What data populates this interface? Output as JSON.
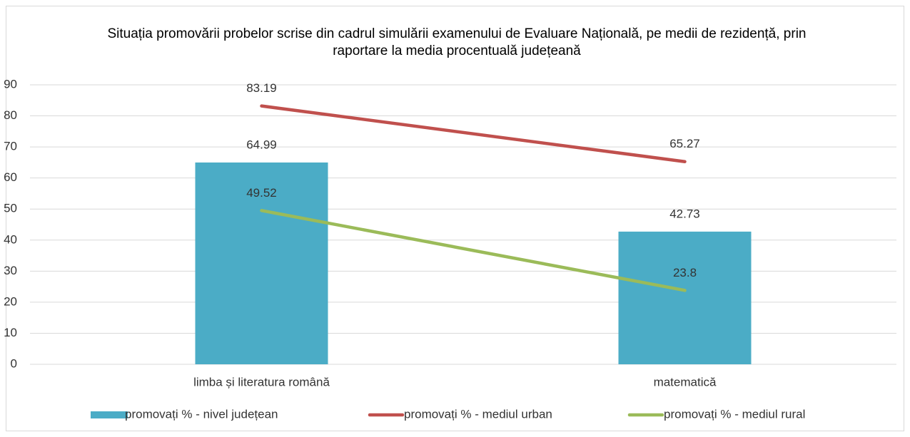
{
  "chart_data": {
    "type": "bar",
    "title": "Situația promovării probelor scrise din cadrul simulării examenului de Evaluare Națională, pe medii de rezidență, prin raportare la media procentuală județeană",
    "categories": [
      "limba și literatura română",
      "matematică"
    ],
    "series": [
      {
        "name": "promovați % - nivel județean",
        "type": "bar",
        "color": "#4bacc6",
        "values": [
          64.99,
          42.73
        ]
      },
      {
        "name": "promovați % - mediul urban",
        "type": "line",
        "color": "#c0504d",
        "values": [
          83.19,
          65.27
        ]
      },
      {
        "name": "promovați % - mediul rural",
        "type": "line",
        "color": "#9bbb59",
        "values": [
          49.52,
          23.8
        ]
      }
    ],
    "ylim": [
      0,
      90
    ],
    "yticks": [
      0,
      10,
      20,
      30,
      40,
      50,
      60,
      70,
      80,
      90
    ],
    "grid": true,
    "legend": "bottom"
  }
}
